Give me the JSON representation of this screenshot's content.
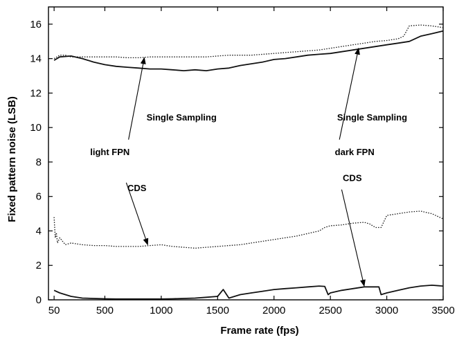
{
  "chart_data": {
    "type": "line",
    "xlabel": "Frame rate (fps)",
    "ylabel": "Fixed pattern noise (LSB)",
    "xlim": [
      0,
      3500
    ],
    "ylim": [
      0,
      17
    ],
    "x_ticks": [
      50,
      500,
      1000,
      1500,
      2000,
      2500,
      3000,
      3500
    ],
    "y_ticks": [
      0,
      2,
      4,
      6,
      8,
      10,
      12,
      14,
      16
    ],
    "grid": false,
    "legend": "none",
    "series": [
      {
        "style": "dotted",
        "x": [
          50,
          100,
          150,
          200,
          300,
          400,
          500,
          600,
          700,
          800,
          900,
          1000,
          1100,
          1200,
          1300,
          1400,
          1500,
          1600,
          1700,
          1800,
          1900,
          2000,
          2100,
          2200,
          2300,
          2400,
          2500,
          2600,
          2700,
          2800,
          2900,
          3000,
          3100,
          3150,
          3200,
          3300,
          3400,
          3500
        ],
        "y": [
          14.0,
          14.2,
          14.2,
          14.1,
          14.1,
          14.1,
          14.1,
          14.1,
          14.05,
          14.05,
          14.1,
          14.1,
          14.1,
          14.1,
          14.1,
          14.1,
          14.15,
          14.2,
          14.2,
          14.2,
          14.25,
          14.3,
          14.35,
          14.4,
          14.45,
          14.5,
          14.6,
          14.7,
          14.8,
          14.9,
          15.0,
          15.05,
          15.15,
          15.3,
          15.9,
          15.95,
          15.9,
          15.8
        ]
      },
      {
        "style": "solid",
        "x": [
          50,
          100,
          200,
          300,
          400,
          500,
          600,
          700,
          800,
          900,
          1000,
          1100,
          1200,
          1300,
          1400,
          1500,
          1600,
          1700,
          1800,
          1900,
          2000,
          2100,
          2200,
          2300,
          2400,
          2500,
          2600,
          2700,
          2800,
          2900,
          3000,
          3100,
          3200,
          3300,
          3400,
          3500
        ],
        "y": [
          13.9,
          14.1,
          14.15,
          14.0,
          13.8,
          13.65,
          13.55,
          13.5,
          13.45,
          13.4,
          13.4,
          13.35,
          13.3,
          13.35,
          13.3,
          13.4,
          13.45,
          13.6,
          13.7,
          13.8,
          13.95,
          14.0,
          14.1,
          14.2,
          14.25,
          14.3,
          14.4,
          14.5,
          14.6,
          14.7,
          14.8,
          14.9,
          15.0,
          15.3,
          15.45,
          15.6
        ]
      },
      {
        "style": "dotted",
        "x": [
          50,
          60,
          70,
          80,
          100,
          150,
          200,
          300,
          400,
          500,
          600,
          700,
          800,
          900,
          1000,
          1100,
          1200,
          1300,
          1400,
          1500,
          1600,
          1700,
          1800,
          1900,
          2000,
          2100,
          2200,
          2300,
          2400,
          2450,
          2500,
          2600,
          2700,
          2800,
          2850,
          2900,
          2950,
          3000,
          3100,
          3200,
          3300,
          3400,
          3500
        ],
        "y": [
          4.8,
          3.6,
          3.9,
          3.3,
          3.6,
          3.2,
          3.3,
          3.2,
          3.15,
          3.15,
          3.1,
          3.1,
          3.1,
          3.15,
          3.2,
          3.1,
          3.05,
          3.0,
          3.05,
          3.1,
          3.15,
          3.2,
          3.3,
          3.4,
          3.5,
          3.6,
          3.7,
          3.85,
          4.0,
          4.2,
          4.3,
          4.35,
          4.45,
          4.5,
          4.4,
          4.2,
          4.2,
          4.9,
          5.0,
          5.1,
          5.15,
          5.0,
          4.7
        ]
      },
      {
        "style": "solid",
        "x": [
          50,
          100,
          150,
          200,
          300,
          400,
          500,
          600,
          700,
          800,
          900,
          1000,
          1100,
          1200,
          1300,
          1400,
          1500,
          1550,
          1600,
          1700,
          1800,
          1900,
          2000,
          2100,
          2200,
          2300,
          2400,
          2450,
          2480,
          2500,
          2600,
          2700,
          2800,
          2900,
          2930,
          2950,
          3000,
          3100,
          3200,
          3300,
          3400,
          3500
        ],
        "y": [
          0.55,
          0.4,
          0.3,
          0.2,
          0.1,
          0.08,
          0.06,
          0.05,
          0.05,
          0.05,
          0.05,
          0.05,
          0.06,
          0.08,
          0.1,
          0.15,
          0.2,
          0.6,
          0.1,
          0.3,
          0.4,
          0.5,
          0.6,
          0.65,
          0.7,
          0.75,
          0.8,
          0.78,
          0.3,
          0.4,
          0.55,
          0.65,
          0.75,
          0.75,
          0.75,
          0.3,
          0.4,
          0.55,
          0.7,
          0.8,
          0.85,
          0.8
        ]
      }
    ],
    "annotations": [
      {
        "text": "light FPN",
        "x": 370,
        "y": 8.4
      },
      {
        "text": "Single Sampling",
        "x": 870,
        "y": 10.4
      },
      {
        "text": "CDS",
        "x": 700,
        "y": 6.3
      },
      {
        "text": "dark FPN",
        "x": 2540,
        "y": 8.4
      },
      {
        "text": "Single Sampling",
        "x": 2560,
        "y": 10.4
      },
      {
        "text": "CDS",
        "x": 2610,
        "y": 6.9
      }
    ],
    "arrows": [
      {
        "from": [
          710,
          9.3
        ],
        "to": [
          850,
          14.05
        ]
      },
      {
        "from": [
          690,
          6.8
        ],
        "to": [
          880,
          3.2
        ]
      },
      {
        "from": [
          2580,
          9.3
        ],
        "to": [
          2750,
          14.6
        ]
      },
      {
        "from": [
          2600,
          6.4
        ],
        "to": [
          2800,
          0.8
        ]
      }
    ]
  }
}
